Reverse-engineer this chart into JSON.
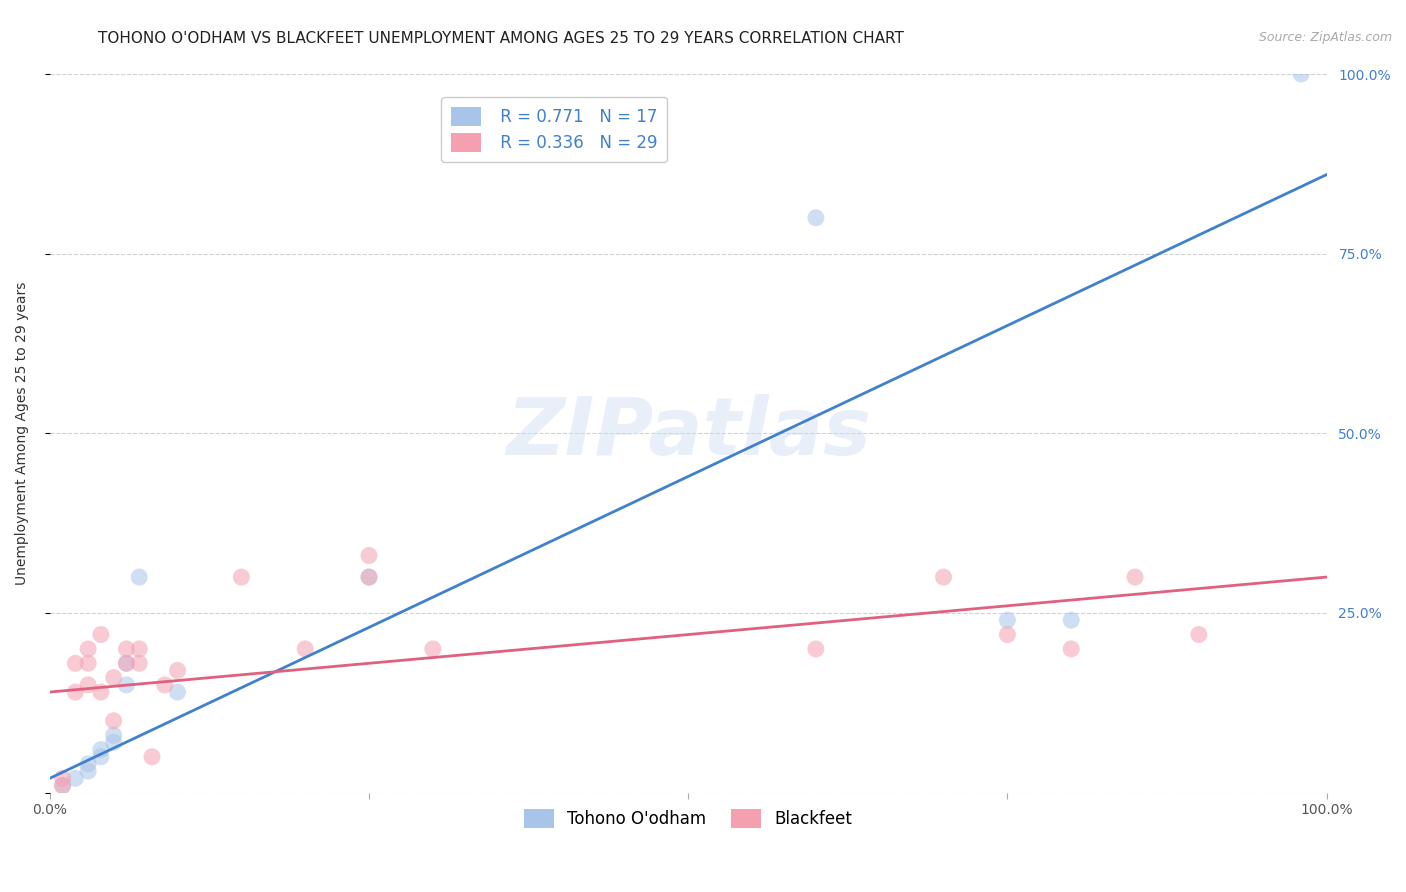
{
  "title": "TOHONO O'ODHAM VS BLACKFEET UNEMPLOYMENT AMONG AGES 25 TO 29 YEARS CORRELATION CHART",
  "source": "Source: ZipAtlas.com",
  "ylabel": "Unemployment Among Ages 25 to 29 years",
  "xlim": [
    0.0,
    1.0
  ],
  "ylim": [
    0.0,
    1.0
  ],
  "xticks": [
    0.0,
    0.25,
    0.5,
    0.75,
    1.0
  ],
  "xticklabels": [
    "0.0%",
    "",
    "",
    "",
    "100.0%"
  ],
  "yticks": [
    0.0,
    0.25,
    0.5,
    0.75,
    1.0
  ],
  "yticklabels": [
    "",
    "25.0%",
    "50.0%",
    "75.0%",
    "100.0%"
  ],
  "background_color": "#ffffff",
  "grid_color": "#d0d0d8",
  "watermark": "ZIPatlas",
  "tohono_color": "#a8c4e8",
  "blackfeet_color": "#f4a0b0",
  "tohono_line_color": "#4080cc",
  "blackfeet_line_color": "#e06080",
  "tohono_R": "0.771",
  "tohono_N": "17",
  "blackfeet_R": "0.336",
  "blackfeet_N": "29",
  "tohono_scatter_x": [
    0.01,
    0.02,
    0.03,
    0.03,
    0.04,
    0.04,
    0.05,
    0.05,
    0.06,
    0.06,
    0.07,
    0.1,
    0.25,
    0.6,
    0.8,
    0.98,
    0.75
  ],
  "tohono_scatter_y": [
    0.01,
    0.02,
    0.03,
    0.04,
    0.05,
    0.06,
    0.07,
    0.08,
    0.15,
    0.18,
    0.3,
    0.14,
    0.3,
    0.8,
    0.24,
    1.0,
    0.24
  ],
  "blackfeet_scatter_x": [
    0.01,
    0.01,
    0.02,
    0.02,
    0.03,
    0.03,
    0.03,
    0.04,
    0.04,
    0.05,
    0.05,
    0.06,
    0.06,
    0.07,
    0.07,
    0.08,
    0.09,
    0.1,
    0.15,
    0.2,
    0.25,
    0.25,
    0.3,
    0.6,
    0.7,
    0.75,
    0.8,
    0.85,
    0.9
  ],
  "blackfeet_scatter_y": [
    0.01,
    0.02,
    0.14,
    0.18,
    0.15,
    0.18,
    0.2,
    0.14,
    0.22,
    0.1,
    0.16,
    0.18,
    0.2,
    0.18,
    0.2,
    0.05,
    0.15,
    0.17,
    0.3,
    0.2,
    0.3,
    0.33,
    0.2,
    0.2,
    0.3,
    0.22,
    0.2,
    0.3,
    0.22
  ],
  "tohono_line_x": [
    0.0,
    1.0
  ],
  "tohono_line_y": [
    0.02,
    0.86
  ],
  "blackfeet_line_x": [
    0.0,
    1.0
  ],
  "blackfeet_line_y": [
    0.14,
    0.3
  ],
  "marker_size": 150,
  "marker_alpha": 0.55,
  "title_fontsize": 11,
  "axis_label_fontsize": 10,
  "tick_fontsize": 10,
  "legend_fontsize": 12
}
